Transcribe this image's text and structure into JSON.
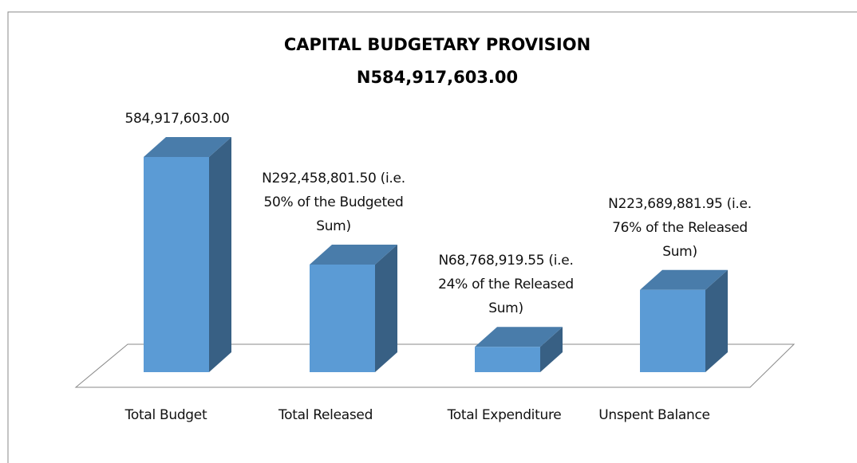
{
  "chart_data": {
    "type": "bar",
    "title": "CAPITAL BUDGETARY PROVISION",
    "subtitle": "N584,917,603.00",
    "categories": [
      "Total Budget",
      "Total Released",
      "Total Expenditure",
      "Unspent Balance"
    ],
    "values": [
      584917603.0,
      292458801.5,
      68768919.55,
      223689881.95
    ],
    "value_labels": [
      "584,917,603.00",
      "N292,458,801.50 (i.e. 50% of the Budgeted Sum)",
      "N68,768,919.55 (i.e. 24% of the Released Sum)",
      "N223,689,881.95 (i.e. 76% of the Released Sum)"
    ],
    "color": "#5b9bd5"
  }
}
